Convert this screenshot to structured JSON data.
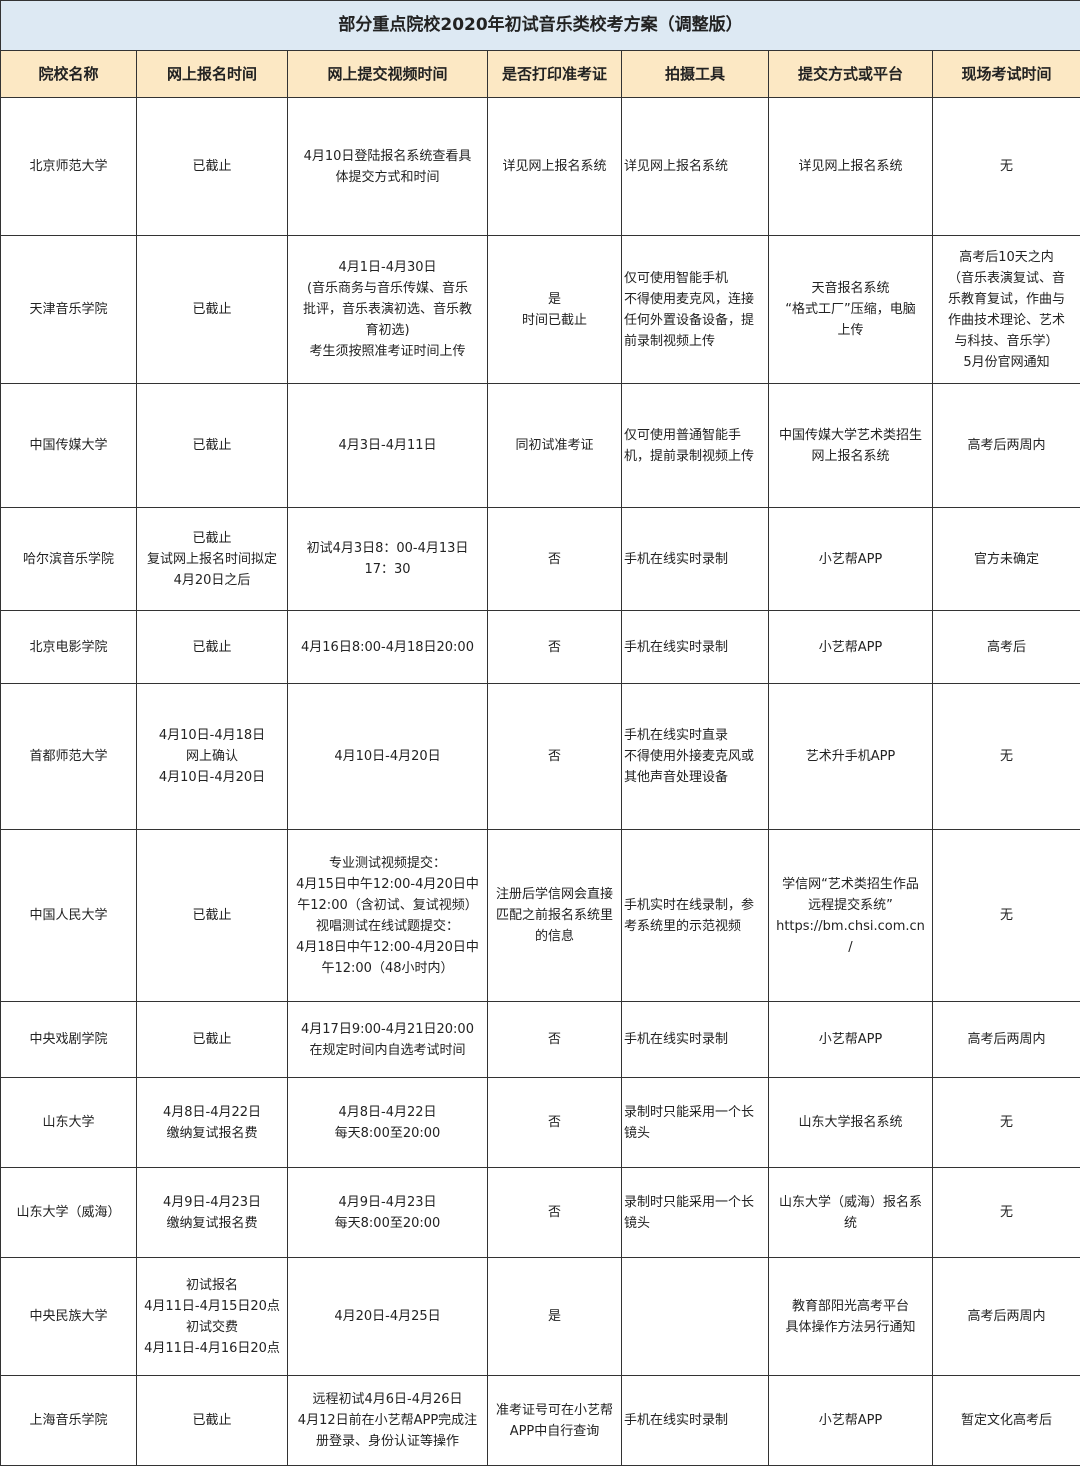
{
  "title": "部分重点院校2020年初试音乐类校考方案（调整版）",
  "headers": [
    "院校名称",
    "网上报名时间",
    "网上提交视频时间",
    "是否打印准考证",
    "拍摄工具",
    "提交方式或平台",
    "现场考试时间"
  ],
  "rows": [
    [
      "北京师范大学",
      "已截止",
      "4月10日登陆报名系统查看具\n体提交方式和时间",
      "详见网上报名系统",
      "详见网上报名系统",
      "详见网上报名系统",
      "无"
    ],
    [
      "天津音乐学院",
      "已截止",
      "4月1日-4月30日\n(音乐商务与音乐传媒、音乐\n批评，音乐表演初选、音乐教\n育初选)\n考生须按照准考证时间上传",
      "是\n时间已截止",
      "仅可使用智能手机\n不得使用麦克风，连接\n任何外置设备设备，提\n前录制视频上传",
      "天音报名系统\n“格式工厂”压缩，电脑\n上传",
      "高考后10天之内\n（音乐表演复试、音\n乐教育复试，作曲与\n作曲技术理论、艺术\n与科技、音乐学）\n5月份官网通知"
    ],
    [
      "中国传媒大学",
      "已截止",
      "4月3日-4月11日",
      "同初试准考证",
      "仅可使用普通智能手\n机，提前录制视频上传",
      "中国传媒大学艺术类招生\n网上报名系统",
      "高考后两周内"
    ],
    [
      "哈尔滨音乐学院",
      "已截止\n复试网上报名时间拟定\n4月20日之后",
      "初试4月3日8：00-4月13日\n17：30",
      "否",
      "手机在线实时录制",
      "小艺帮APP",
      "官方未确定"
    ],
    [
      "北京电影学院",
      "已截止",
      "4月16日8:00-4月18日20:00",
      "否",
      "手机在线实时录制",
      "小艺帮APP",
      "高考后"
    ],
    [
      "首都师范大学",
      "4月10日-4月18日\n网上确认\n4月10日-4月20日",
      "4月10日-4月20日",
      "否",
      "手机在线实时直录\n不得使用外接麦克风或\n其他声音处理设备",
      "艺术升手机APP",
      "无"
    ],
    [
      "中国人民大学",
      "已截止",
      "专业测试视频提交：\n4月15日中午12:00-4月20日中\n午12:00（含初试、复试视频）\n视唱测试在线试题提交：\n4月18日中午12:00-4月20日中\n午12:00（48小时内）",
      "注册后学信网会直接\n匹配之前报名系统里\n的信息",
      "手机实时在线录制，参\n考系统里的示范视频",
      "学信网“艺术类招生作品\n远程提交系统”\nhttps://bm.chsi.com.cn\n/",
      "无"
    ],
    [
      "中央戏剧学院",
      "已截止",
      "4月17日9:00-4月21日20:00\n在规定时间内自选考试时间",
      "否",
      "手机在线实时录制",
      "小艺帮APP",
      "高考后两周内"
    ],
    [
      "山东大学",
      "4月8日-4月22日\n缴纳复试报名费",
      "4月8日-4月22日\n每天8:00至20:00",
      "否",
      "录制时只能采用一个长\n镜头",
      "山东大学报名系统",
      "无"
    ],
    [
      "山东大学（威海）",
      "4月9日-4月23日\n缴纳复试报名费",
      "4月9日-4月23日\n每天8:00至20:00",
      "否",
      "录制时只能采用一个长\n镜头",
      "山东大学（威海）报名系\n统",
      "无"
    ],
    [
      "中央民族大学",
      "初试报名\n4月11日-4月15日20点\n初试交费\n4月11日-4月16日20点",
      "4月20日-4月25日",
      "是",
      "",
      "教育部阳光高考平台\n具体操作方法另行通知",
      "高考后两周内"
    ],
    [
      "上海音乐学院",
      "已截止",
      "远程初试4月6日-4月26日\n4月12日前在小艺帮APP完成注\n册登录、身份认证等操作",
      "准考证号可在小艺帮\nAPP中自行查询",
      "手机在线实时录制",
      "小艺帮APP",
      "暂定文化高考后"
    ]
  ]
}
